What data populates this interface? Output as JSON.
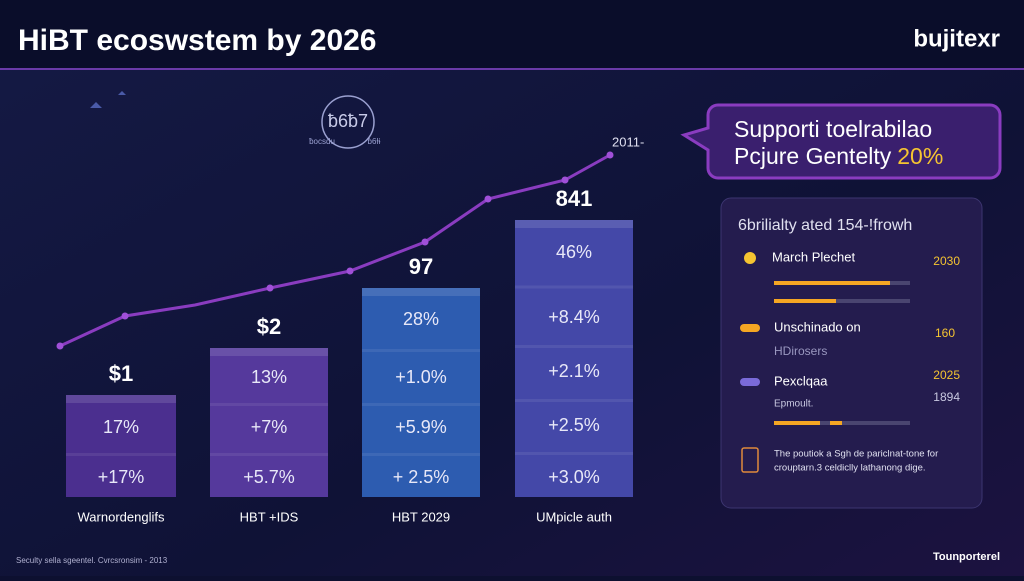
{
  "header": {
    "title": "HiBT ecoswstem by 2026",
    "logo": "bujitexr"
  },
  "icon": {
    "label": "ƀ6ƀ7",
    "caption_left": "ƀocsdu",
    "caption_right": "ƀ6Ɨɨ"
  },
  "trend_label": "2011-",
  "bars": [
    {
      "top": "$1",
      "segments": [
        "17%",
        "+17%"
      ],
      "label": "Warnordenglifs"
    },
    {
      "top": "$2",
      "segments": [
        "13%",
        "+7%",
        "+5.7%"
      ],
      "label": "HBT +IDS"
    },
    {
      "top": "97",
      "segments": [
        "28%",
        "+1.0%",
        "+5.9%",
        "+ 2.5%"
      ],
      "label": "HBT 2029"
    },
    {
      "top": "841",
      "segments": [
        "46%",
        "+8.4%",
        "+2.1%",
        "+2.5%",
        "+3.0%"
      ],
      "label": "UMpicle auth"
    }
  ],
  "callout": {
    "line1": "Supporti toelrabilao",
    "line2": "Pcjure Gentelty",
    "highlight": "20%"
  },
  "panel": {
    "title": "6brilialty ated 154-!frowh",
    "items": [
      {
        "name": "March Plechet",
        "value": "2030"
      },
      {
        "name": "Unschinado on",
        "value": "160",
        "sub": "HDirosers"
      },
      {
        "name": "Pexclqaa",
        "value": "2025",
        "value2": "1894",
        "sub": "Epmoult."
      }
    ],
    "note_line1": "The poutiok a Sgh de pariclnat-tone for",
    "note_line2": "crouptarn.3 celdiclly lathanong dige."
  },
  "footer": {
    "left": "Seculty sella sgeentel. Cvrcsronsim - 2013",
    "right": "Tounporterel"
  }
}
